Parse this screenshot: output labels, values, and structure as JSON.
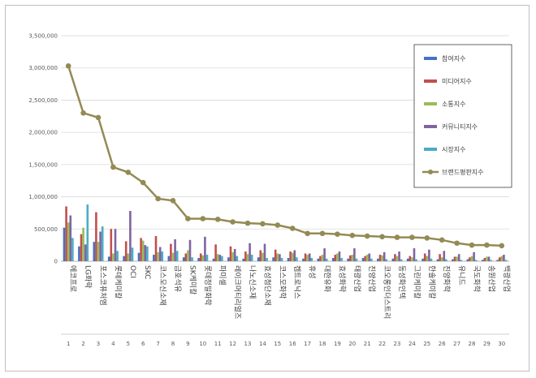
{
  "chart_data": {
    "type": "bar",
    "title": "",
    "xlabel": "",
    "ylabel": "",
    "ylim": [
      0,
      3500000
    ],
    "yticks": [
      "0",
      "500,000",
      "1,000,000",
      "1,500,000",
      "2,000,000",
      "2,500,000",
      "3,000,000",
      "3,500,000"
    ],
    "ytick_values": [
      0,
      500000,
      1000000,
      1500000,
      2000000,
      2500000,
      3000000,
      3500000
    ],
    "grid": "horizontal",
    "legend_position": "right",
    "ranks": [
      "1",
      "2",
      "3",
      "4",
      "5",
      "6",
      "7",
      "8",
      "9",
      "10",
      "11",
      "12",
      "13",
      "14",
      "15",
      "16",
      "17",
      "18",
      "19",
      "20",
      "21",
      "22",
      "23",
      "24",
      "25",
      "26",
      "27",
      "28",
      "29",
      "30"
    ],
    "categories": [
      "에코프로",
      "LG화학",
      "포스코퓨처엠",
      "롯데케미칼",
      "OCI",
      "SKC",
      "코스모신소재",
      "금호석유",
      "SK케미칼",
      "롯데정밀화학",
      "파미셀",
      "레이크머티리얼즈",
      "나노신소재",
      "효성첨단소재",
      "코스모화학",
      "켐트로닉스",
      "휴성",
      "대한유화",
      "효성화학",
      "태광산업",
      "진양산업",
      "코오롱인더스트리",
      "동성화인텍",
      "그린케미칼",
      "한솔케미칼",
      "진양화학",
      "유니드",
      "국도화학",
      "송원산업",
      "백광산업"
    ],
    "series": [
      {
        "name": "참여지수",
        "type": "bar",
        "color": "#4472c4",
        "values": [
          520000,
          230000,
          300000,
          70000,
          80000,
          130000,
          100000,
          80000,
          60000,
          50000,
          40000,
          60000,
          40000,
          60000,
          60000,
          50000,
          40000,
          40000,
          50000,
          40000,
          50000,
          40000,
          40000,
          40000,
          40000,
          30000,
          30000,
          30000,
          20000,
          20000
        ]
      },
      {
        "name": "미디어지수",
        "type": "bar",
        "color": "#c0504d",
        "values": [
          850000,
          420000,
          760000,
          500000,
          310000,
          360000,
          390000,
          270000,
          120000,
          120000,
          260000,
          230000,
          150000,
          170000,
          180000,
          150000,
          120000,
          80000,
          100000,
          90000,
          80000,
          100000,
          110000,
          80000,
          120000,
          110000,
          70000,
          60000,
          50000,
          60000
        ]
      },
      {
        "name": "소통지수",
        "type": "bar",
        "color": "#9bbb59",
        "values": [
          600000,
          520000,
          300000,
          120000,
          120000,
          320000,
          140000,
          130000,
          170000,
          90000,
          110000,
          140000,
          110000,
          130000,
          120000,
          130000,
          100000,
          100000,
          120000,
          100000,
          100000,
          90000,
          80000,
          60000,
          80000,
          60000,
          70000,
          80000,
          70000,
          80000
        ]
      },
      {
        "name": "커뮤니티지수",
        "type": "bar",
        "color": "#8064a2",
        "values": [
          710000,
          260000,
          460000,
          500000,
          780000,
          250000,
          220000,
          340000,
          330000,
          380000,
          100000,
          190000,
          280000,
          270000,
          110000,
          170000,
          120000,
          200000,
          150000,
          200000,
          120000,
          140000,
          150000,
          200000,
          180000,
          160000,
          110000,
          140000,
          70000,
          100000
        ]
      },
      {
        "name": "시장지수",
        "type": "bar",
        "color": "#4bacc6",
        "values": [
          360000,
          880000,
          540000,
          160000,
          210000,
          230000,
          150000,
          160000,
          60000,
          100000,
          80000,
          80000,
          100000,
          50000,
          50000,
          60000,
          50000,
          40000,
          50000,
          40000,
          40000,
          30000,
          30000,
          30000,
          40000,
          30000,
          20000,
          20000,
          20000,
          20000
        ]
      },
      {
        "name": "브랜드평판지수",
        "type": "line",
        "color": "#948a54",
        "values": [
          3030000,
          2300000,
          2230000,
          1460000,
          1380000,
          1220000,
          970000,
          940000,
          660000,
          660000,
          650000,
          610000,
          590000,
          580000,
          560000,
          510000,
          430000,
          430000,
          420000,
          400000,
          390000,
          380000,
          370000,
          370000,
          360000,
          330000,
          280000,
          250000,
          250000,
          240000
        ]
      }
    ]
  }
}
